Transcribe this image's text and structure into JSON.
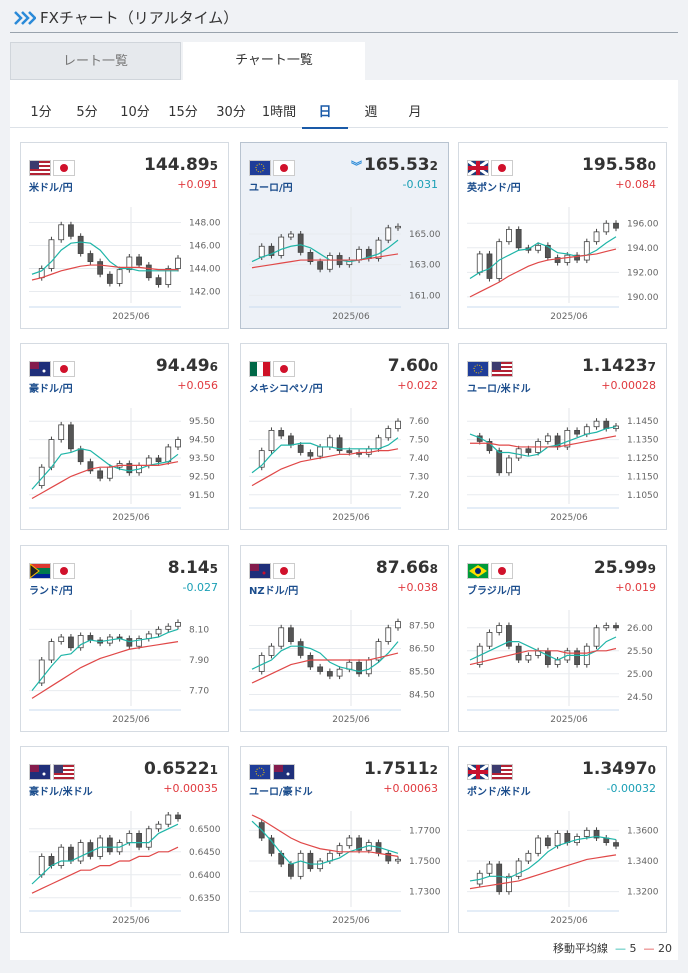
{
  "header": {
    "title": "FXチャート（リアルタイム）"
  },
  "tabs": [
    "レート一覧",
    "チャート一覧"
  ],
  "periods": [
    "1分",
    "5分",
    "10分",
    "15分",
    "30分",
    "1時間",
    "日",
    "週",
    "月"
  ],
  "active_period": 6,
  "legend": {
    "title": "移動平均線",
    "ma5": "5",
    "ma20": "20",
    "ma5_color": "#1fb5a8",
    "ma20_color": "#e04848"
  },
  "cards": [
    {
      "name": "米ドル/円",
      "price": "144.89",
      "pip": "5",
      "change": "+0.091",
      "x_label": "2025/06",
      "ylim": [
        141,
        149
      ],
      "yticks": [
        {
          "value": 142,
          "label": "142.00"
        },
        {
          "value": 144,
          "label": "144.00"
        },
        {
          "value": 146,
          "label": "146.00"
        },
        {
          "value": 148,
          "label": "148.00"
        }
      ],
      "closes": [
        143.2,
        144,
        146.5,
        147.8,
        146.8,
        145.3,
        144.6,
        143.5,
        142.7,
        143.9,
        145,
        144.3,
        143.2,
        142.6,
        144,
        144.9
      ],
      "ma5": [
        143.5,
        143.8,
        144.6,
        145.6,
        146.2,
        146.3,
        146.2,
        145.6,
        144.6,
        144,
        144,
        143.8,
        143.8,
        143.8,
        143.8,
        143.8
      ],
      "ma20": [
        143,
        143.2,
        143.5,
        143.8,
        144,
        144.2,
        144.3,
        144.3,
        144.2,
        144.1,
        144.1,
        144.1,
        144,
        143.9,
        143.9,
        143.9
      ]
    },
    {
      "name": "ユーロ/円",
      "price": "165.53",
      "pip": "2",
      "change": "-0.031",
      "selected": true,
      "x_label": "2025/06",
      "ylim": [
        160.5,
        166.5
      ],
      "yticks": [
        {
          "value": 161,
          "label": "161.00"
        },
        {
          "value": 163,
          "label": "163.00"
        },
        {
          "value": 165,
          "label": "165.00"
        }
      ],
      "closes": [
        163.5,
        164.2,
        163.6,
        164.8,
        165,
        163.8,
        163.2,
        162.7,
        163.6,
        163,
        163.3,
        164,
        163.4,
        164.6,
        165.4,
        165.5
      ],
      "ma5": [
        163.2,
        163.5,
        163.7,
        164,
        164.2,
        164.3,
        164.1,
        163.7,
        163.3,
        163.3,
        163.2,
        163.3,
        163.5,
        163.7,
        164.1,
        164.6
      ],
      "ma20": [
        162.8,
        162.9,
        163,
        163.1,
        163.2,
        163.3,
        163.3,
        163.3,
        163.3,
        163.3,
        163.3,
        163.3,
        163.4,
        163.5,
        163.6,
        163.7
      ]
    },
    {
      "name": "英ポンド/円",
      "price": "195.58",
      "pip": "0",
      "change": "+0.084",
      "x_label": "2025/06",
      "ylim": [
        189.5,
        197
      ],
      "yticks": [
        {
          "value": 190,
          "label": "190.00"
        },
        {
          "value": 192,
          "label": "192.00"
        },
        {
          "value": 194,
          "label": "194.00"
        },
        {
          "value": 196,
          "label": "196.00"
        }
      ],
      "closes": [
        192,
        193.5,
        191.5,
        194.5,
        195.5,
        194,
        193.8,
        194.2,
        193.2,
        192.8,
        193.4,
        193,
        194.5,
        195.3,
        196,
        195.6
      ],
      "ma5": [
        191.5,
        192,
        192.3,
        193,
        193.4,
        193.8,
        193.9,
        194.4,
        194.1,
        193.6,
        193.5,
        193.3,
        193.4,
        193.8,
        194.4,
        194.9
      ],
      "ma20": [
        190,
        190.4,
        190.8,
        191.2,
        191.7,
        192.1,
        192.5,
        192.8,
        193,
        193.1,
        193.2,
        193.3,
        193.4,
        193.5,
        193.7,
        193.9
      ]
    },
    {
      "name": "豪ドル/円",
      "price": "94.49",
      "pip": "6",
      "change": "+0.056",
      "x_label": "2025/06",
      "ylim": [
        91,
        96
      ],
      "yticks": [
        {
          "value": 91.5,
          "label": "91.50"
        },
        {
          "value": 92.5,
          "label": "92.50"
        },
        {
          "value": 93.5,
          "label": "93.50"
        },
        {
          "value": 94.5,
          "label": "94.50"
        },
        {
          "value": 95.5,
          "label": "95.50"
        }
      ],
      "closes": [
        92,
        93,
        94.5,
        95.3,
        94,
        93.3,
        92.8,
        92.4,
        93,
        93.2,
        92.7,
        93.1,
        93.5,
        93.3,
        94.1,
        94.5
      ],
      "ma5": [
        91.8,
        92.4,
        93,
        93.7,
        93.8,
        94,
        93.9,
        93.5,
        93.1,
        92.9,
        92.8,
        92.9,
        93.1,
        93.2,
        93.3,
        93.7
      ],
      "ma20": [
        91.3,
        91.6,
        91.9,
        92.2,
        92.5,
        92.7,
        92.9,
        93,
        93,
        93.1,
        93.1,
        93.1,
        93.1,
        93.1,
        93.2,
        93.3
      ]
    },
    {
      "name": "メキシコペソ/円",
      "price": "7.60",
      "pip": "0",
      "change": "+0.022",
      "x_label": "2025/06",
      "ylim": [
        7.15,
        7.65
      ],
      "yticks": [
        {
          "value": 7.2,
          "label": "7.20"
        },
        {
          "value": 7.3,
          "label": "7.30"
        },
        {
          "value": 7.4,
          "label": "7.40"
        },
        {
          "value": 7.5,
          "label": "7.50"
        },
        {
          "value": 7.6,
          "label": "7.60"
        }
      ],
      "closes": [
        7.35,
        7.44,
        7.55,
        7.52,
        7.47,
        7.43,
        7.41,
        7.46,
        7.51,
        7.44,
        7.43,
        7.42,
        7.45,
        7.51,
        7.56,
        7.6
      ],
      "ma5": [
        7.32,
        7.36,
        7.42,
        7.47,
        7.47,
        7.48,
        7.48,
        7.46,
        7.46,
        7.45,
        7.45,
        7.45,
        7.45,
        7.45,
        7.47,
        7.51
      ],
      "ma20": [
        7.25,
        7.28,
        7.31,
        7.34,
        7.36,
        7.38,
        7.39,
        7.4,
        7.41,
        7.42,
        7.42,
        7.43,
        7.43,
        7.44,
        7.44,
        7.45
      ]
    },
    {
      "name": "ユーロ/米ドル",
      "price": "1.1423",
      "pip": "7",
      "change": "+0.00028",
      "x_label": "2025/06",
      "ylim": [
        1.1,
        1.15
      ],
      "yticks": [
        {
          "value": 1.105,
          "label": "1.1050"
        },
        {
          "value": 1.115,
          "label": "1.1150"
        },
        {
          "value": 1.125,
          "label": "1.1250"
        },
        {
          "value": 1.135,
          "label": "1.1350"
        },
        {
          "value": 1.145,
          "label": "1.1450"
        }
      ],
      "closes": [
        1.137,
        1.134,
        1.129,
        1.117,
        1.125,
        1.13,
        1.128,
        1.134,
        1.137,
        1.131,
        1.14,
        1.138,
        1.142,
        1.145,
        1.141,
        1.1424
      ],
      "ma5": [
        1.138,
        1.136,
        1.133,
        1.128,
        1.128,
        1.127,
        1.126,
        1.127,
        1.131,
        1.132,
        1.134,
        1.136,
        1.138,
        1.139,
        1.141,
        1.142
      ],
      "ma20": [
        1.133,
        1.133,
        1.133,
        1.132,
        1.132,
        1.131,
        1.131,
        1.131,
        1.131,
        1.131,
        1.132,
        1.133,
        1.134,
        1.135,
        1.136,
        1.137
      ]
    },
    {
      "name": "ランド/円",
      "price": "8.14",
      "pip": "5",
      "change": "-0.027",
      "x_label": "2025/06",
      "ylim": [
        7.6,
        8.2
      ],
      "yticks": [
        {
          "value": 7.7,
          "label": "7.70"
        },
        {
          "value": 7.9,
          "label": "7.90"
        },
        {
          "value": 8.1,
          "label": "8.10"
        }
      ],
      "closes": [
        7.75,
        7.9,
        8.02,
        8.05,
        7.98,
        8.06,
        8.03,
        8.01,
        8.05,
        8.04,
        7.99,
        8.04,
        8.07,
        8.1,
        8.12,
        8.145
      ],
      "ma5": [
        7.7,
        7.78,
        7.86,
        7.93,
        7.94,
        8,
        8.03,
        8.02,
        8.03,
        8.04,
        8.02,
        8.03,
        8.04,
        8.05,
        8.08,
        8.1
      ],
      "ma20": [
        7.65,
        7.69,
        7.73,
        7.77,
        7.81,
        7.85,
        7.88,
        7.91,
        7.93,
        7.95,
        7.97,
        7.98,
        7.99,
        8,
        8.01,
        8.02
      ]
    },
    {
      "name": "NZドル/円",
      "price": "87.66",
      "pip": "8",
      "change": "+0.038",
      "x_label": "2025/06",
      "ylim": [
        84,
        88
      ],
      "yticks": [
        {
          "value": 84.5,
          "label": "84.50"
        },
        {
          "value": 85.5,
          "label": "85.50"
        },
        {
          "value": 86.5,
          "label": "86.50"
        },
        {
          "value": 87.5,
          "label": "87.50"
        }
      ],
      "closes": [
        85.5,
        86.2,
        86.6,
        87.4,
        86.8,
        86.2,
        85.7,
        85.5,
        85.3,
        85.6,
        85.9,
        85.4,
        86,
        86.8,
        87.4,
        87.67
      ],
      "ma5": [
        85.6,
        85.8,
        86,
        86.4,
        86.6,
        86.6,
        86.5,
        86.3,
        85.9,
        85.7,
        85.6,
        85.5,
        85.6,
        85.9,
        86.3,
        86.8
      ],
      "ma20": [
        85,
        85.2,
        85.4,
        85.6,
        85.8,
        85.9,
        86,
        86,
        86,
        86,
        86,
        86,
        86,
        86.1,
        86.2,
        86.3
      ]
    },
    {
      "name": "ブラジル/円",
      "price": "25.99",
      "pip": "9",
      "change": "+0.019",
      "x_label": "2025/06",
      "ylim": [
        24.3,
        26.3
      ],
      "yticks": [
        {
          "value": 24.5,
          "label": "24.50"
        },
        {
          "value": 25,
          "label": "25.00"
        },
        {
          "value": 25.5,
          "label": "25.50"
        },
        {
          "value": 26,
          "label": "26.00"
        }
      ],
      "closes": [
        25.2,
        25.6,
        25.9,
        26.05,
        25.6,
        25.3,
        25.4,
        25.5,
        25.2,
        25.3,
        25.5,
        25.2,
        25.6,
        26,
        26.05,
        25.999
      ],
      "ma5": [
        25.3,
        25.4,
        25.5,
        25.6,
        25.7,
        25.7,
        25.6,
        25.5,
        25.4,
        25.3,
        25.4,
        25.4,
        25.4,
        25.5,
        25.7,
        25.8
      ],
      "ma20": [
        25.2,
        25.25,
        25.3,
        25.35,
        25.4,
        25.45,
        25.5,
        25.5,
        25.5,
        25.5,
        25.45,
        25.45,
        25.45,
        25.5,
        25.5,
        25.55
      ]
    },
    {
      "name": "豪ドル/米ドル",
      "price": "0.6522",
      "pip": "1",
      "change": "+0.00035",
      "x_label": "2025/06",
      "ylim": [
        0.633,
        0.653
      ],
      "yticks": [
        {
          "value": 0.635,
          "label": "0.6350"
        },
        {
          "value": 0.64,
          "label": "0.6400"
        },
        {
          "value": 0.645,
          "label": "0.6450"
        },
        {
          "value": 0.65,
          "label": "0.6500"
        }
      ],
      "closes": [
        0.64,
        0.644,
        0.642,
        0.646,
        0.643,
        0.647,
        0.644,
        0.648,
        0.645,
        0.647,
        0.649,
        0.646,
        0.65,
        0.651,
        0.653,
        0.6522
      ],
      "ma5": [
        0.638,
        0.64,
        0.642,
        0.643,
        0.643,
        0.644,
        0.645,
        0.646,
        0.646,
        0.646,
        0.647,
        0.647,
        0.647,
        0.649,
        0.65,
        0.651
      ],
      "ma20": [
        0.636,
        0.637,
        0.638,
        0.639,
        0.64,
        0.641,
        0.641,
        0.642,
        0.642,
        0.643,
        0.643,
        0.644,
        0.644,
        0.645,
        0.645,
        0.646
      ]
    },
    {
      "name": "ユーロ/豪ドル",
      "price": "1.7511",
      "pip": "2",
      "change": "+0.00063",
      "x_label": "2025/06",
      "ylim": [
        1.72,
        1.78
      ],
      "yticks": [
        {
          "value": 1.73,
          "label": "1.7300"
        },
        {
          "value": 1.75,
          "label": "1.7500"
        },
        {
          "value": 1.77,
          "label": "1.7700"
        }
      ],
      "closes": [
        1.775,
        1.765,
        1.755,
        1.748,
        1.74,
        1.755,
        1.745,
        1.75,
        1.755,
        1.76,
        1.765,
        1.757,
        1.762,
        1.755,
        1.75,
        1.7511
      ],
      "ma5": [
        1.776,
        1.77,
        1.763,
        1.755,
        1.748,
        1.75,
        1.748,
        1.748,
        1.75,
        1.752,
        1.756,
        1.758,
        1.76,
        1.759,
        1.757,
        1.755
      ],
      "ma20": [
        1.78,
        1.777,
        1.773,
        1.769,
        1.765,
        1.762,
        1.76,
        1.758,
        1.757,
        1.756,
        1.756,
        1.756,
        1.756,
        1.755,
        1.754,
        1.753
      ]
    },
    {
      "name": "ポンド/米ドル",
      "price": "1.3497",
      "pip": "0",
      "change": "-0.00032",
      "x_label": "2025/06",
      "ylim": [
        1.31,
        1.37
      ],
      "yticks": [
        {
          "value": 1.32,
          "label": "1.3200"
        },
        {
          "value": 1.34,
          "label": "1.3400"
        },
        {
          "value": 1.36,
          "label": "1.3600"
        }
      ],
      "closes": [
        1.325,
        1.332,
        1.338,
        1.32,
        1.33,
        1.34,
        1.345,
        1.355,
        1.35,
        1.358,
        1.352,
        1.356,
        1.36,
        1.355,
        1.352,
        1.3497
      ],
      "ma5": [
        1.327,
        1.328,
        1.33,
        1.33,
        1.329,
        1.332,
        1.335,
        1.34,
        1.346,
        1.35,
        1.352,
        1.354,
        1.355,
        1.356,
        1.355,
        1.354
      ],
      "ma20": [
        1.322,
        1.323,
        1.324,
        1.325,
        1.326,
        1.327,
        1.329,
        1.331,
        1.333,
        1.335,
        1.337,
        1.339,
        1.341,
        1.342,
        1.343,
        1.344
      ]
    }
  ]
}
